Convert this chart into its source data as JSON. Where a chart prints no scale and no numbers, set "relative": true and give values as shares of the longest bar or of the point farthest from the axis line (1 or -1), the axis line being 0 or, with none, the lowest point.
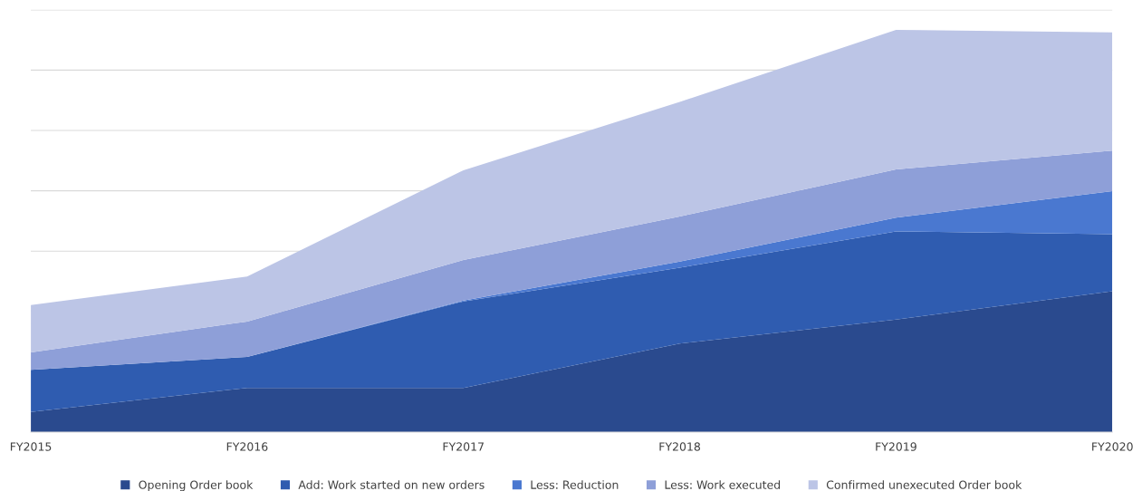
{
  "chart_data": {
    "type": "area",
    "stacked": true,
    "relative": true,
    "grid": "y",
    "legend": "bottom",
    "categories": [
      "FY2015",
      "FY2016",
      "FY2017",
      "FY2018",
      "FY2019",
      "FY2020"
    ],
    "series": [
      {
        "name": "Opening Order book",
        "color": "#2a4a8e",
        "values": [
          0.05,
          0.11,
          0.11,
          0.22,
          0.28,
          0.35
        ]
      },
      {
        "name": "Add: Work started on new orders",
        "color": "#2f5cb0",
        "values": [
          0.105,
          0.077,
          0.215,
          0.189,
          0.219,
          0.142
        ]
      },
      {
        "name": "Less: Reduction",
        "color": "#4a78d0",
        "values": [
          0,
          0,
          0.002,
          0.015,
          0.034,
          0.107
        ]
      },
      {
        "name": "Less: Work executed",
        "color": "#8e9fd8",
        "values": [
          0.043,
          0.088,
          0.101,
          0.112,
          0.12,
          0.101
        ]
      },
      {
        "name": "Confirmed unexecuted Order book",
        "color": "#bcc5e6",
        "values": [
          0.118,
          0.112,
          0.223,
          0.285,
          0.347,
          0.294
        ]
      }
    ]
  }
}
